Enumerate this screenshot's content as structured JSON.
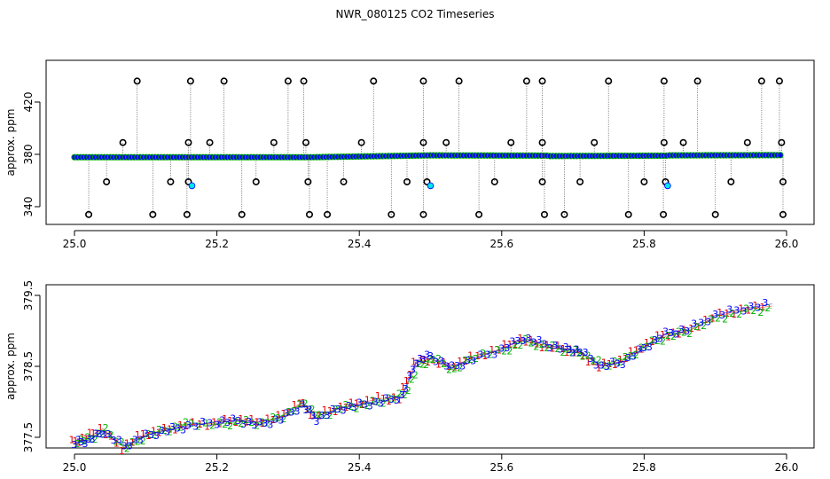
{
  "title": "NWR_080125  CO2 Timeseries",
  "colors": {
    "line": "#000000",
    "outline": "#000000",
    "fill_point": "#0000ff",
    "fill_ring": "#00b000",
    "highlight": "#00e5ee",
    "digit1": "#e00000",
    "digit2": "#00b000",
    "digit3": "#0000ff",
    "segment_red": "#e00000"
  },
  "chart_data": [
    {
      "type": "scatter",
      "title": "",
      "xlabel": "",
      "ylabel": "approx. ppm",
      "xlim": [
        25.0,
        26.0
      ],
      "ylim": [
        330,
        443
      ],
      "xticks": [
        "25.0",
        "25.2",
        "25.4",
        "25.6",
        "25.8",
        "26.0"
      ],
      "yticks": [
        "340",
        "380",
        "420"
      ],
      "grid": false,
      "series": [
        {
          "role": "baseline",
          "values": [
            [
              25.0,
              377.8
            ],
            [
              25.333,
              377.8
            ],
            [
              25.334,
              377.8
            ],
            [
              25.5,
              379.2
            ],
            [
              25.666,
              379.0
            ],
            [
              25.667,
              378.7
            ],
            [
              25.833,
              379.0
            ],
            [
              25.834,
              379.2
            ],
            [
              25.995,
              379.4
            ]
          ]
        },
        {
          "role": "spikes_high",
          "values": [
            [
              25.088,
              436
            ],
            [
              25.163,
              436
            ],
            [
              25.21,
              436
            ],
            [
              25.3,
              436
            ],
            [
              25.322,
              436
            ],
            [
              25.42,
              436
            ],
            [
              25.49,
              436
            ],
            [
              25.54,
              436
            ],
            [
              25.635,
              436
            ],
            [
              25.657,
              436
            ],
            [
              25.75,
              436
            ],
            [
              25.828,
              436
            ],
            [
              25.875,
              436
            ],
            [
              25.965,
              436
            ],
            [
              25.99,
              436
            ]
          ]
        },
        {
          "role": "spikes_low",
          "values": [
            [
              25.02,
              334
            ],
            [
              25.11,
              334
            ],
            [
              25.158,
              334
            ],
            [
              25.235,
              334
            ],
            [
              25.33,
              334
            ],
            [
              25.355,
              334
            ],
            [
              25.445,
              334
            ],
            [
              25.49,
              334
            ],
            [
              25.568,
              334
            ],
            [
              25.66,
              334
            ],
            [
              25.688,
              334
            ],
            [
              25.778,
              334
            ],
            [
              25.827,
              334
            ],
            [
              25.9,
              334
            ],
            [
              25.995,
              334
            ]
          ]
        },
        {
          "role": "spikes_mid_high",
          "values": [
            [
              25.068,
              389
            ],
            [
              25.16,
              389
            ],
            [
              25.19,
              389
            ],
            [
              25.28,
              389
            ],
            [
              25.325,
              389
            ],
            [
              25.403,
              389
            ],
            [
              25.49,
              389
            ],
            [
              25.522,
              389
            ],
            [
              25.613,
              389
            ],
            [
              25.657,
              389
            ],
            [
              25.73,
              389
            ],
            [
              25.828,
              389
            ],
            [
              25.855,
              389
            ],
            [
              25.945,
              389
            ],
            [
              25.993,
              389
            ]
          ]
        },
        {
          "role": "spikes_mid_low",
          "values": [
            [
              25.045,
              359
            ],
            [
              25.135,
              359
            ],
            [
              25.16,
              359
            ],
            [
              25.255,
              359
            ],
            [
              25.328,
              359
            ],
            [
              25.378,
              359
            ],
            [
              25.467,
              359
            ],
            [
              25.495,
              359
            ],
            [
              25.59,
              359
            ],
            [
              25.657,
              359
            ],
            [
              25.71,
              359
            ],
            [
              25.8,
              359
            ],
            [
              25.83,
              359
            ],
            [
              25.922,
              359
            ],
            [
              25.995,
              359
            ]
          ]
        },
        {
          "role": "highlight",
          "values": [
            [
              25.165,
              356
            ],
            [
              25.5,
              356
            ],
            [
              25.833,
              356
            ]
          ]
        }
      ]
    },
    {
      "type": "line",
      "title": "",
      "xlabel": "",
      "ylabel": "approx. ppm",
      "xlim": [
        25.0,
        26.0
      ],
      "ylim": [
        377.3,
        379.55
      ],
      "xticks": [
        "25.0",
        "25.2",
        "25.4",
        "25.6",
        "25.8",
        "26.0"
      ],
      "yticks": [
        "377.5",
        "378.5",
        "379.5"
      ],
      "grid": false,
      "series": [
        {
          "name": "1",
          "values": [
            [
              25.0,
              377.43
            ],
            [
              25.02,
              377.5
            ],
            [
              25.04,
              377.62
            ],
            [
              25.07,
              377.35
            ],
            [
              25.1,
              377.55
            ],
            [
              25.13,
              377.6
            ],
            [
              25.16,
              377.68
            ],
            [
              25.2,
              377.7
            ],
            [
              25.23,
              377.75
            ],
            [
              25.26,
              377.72
            ],
            [
              25.29,
              377.78
            ],
            [
              25.32,
              378.0
            ],
            [
              25.34,
              377.8
            ],
            [
              25.37,
              377.9
            ],
            [
              25.4,
              377.98
            ],
            [
              25.43,
              378.05
            ],
            [
              25.46,
              378.05
            ],
            [
              25.48,
              378.55
            ],
            [
              25.5,
              378.6
            ],
            [
              25.53,
              378.5
            ],
            [
              25.56,
              378.62
            ],
            [
              25.6,
              378.75
            ],
            [
              25.63,
              378.88
            ],
            [
              25.66,
              378.8
            ],
            [
              25.69,
              378.75
            ],
            [
              25.71,
              378.7
            ],
            [
              25.74,
              378.5
            ],
            [
              25.77,
              378.58
            ],
            [
              25.8,
              378.78
            ],
            [
              25.83,
              378.95
            ],
            [
              25.86,
              378.98
            ],
            [
              25.9,
              379.2
            ],
            [
              25.94,
              379.3
            ],
            [
              25.98,
              379.35
            ]
          ]
        },
        {
          "name": "2",
          "values": [
            [
              25.0,
              377.45
            ],
            [
              25.02,
              377.48
            ],
            [
              25.04,
              377.6
            ],
            [
              25.07,
              377.36
            ],
            [
              25.1,
              377.53
            ],
            [
              25.13,
              377.62
            ],
            [
              25.16,
              377.7
            ],
            [
              25.2,
              377.68
            ],
            [
              25.23,
              377.72
            ],
            [
              25.26,
              377.7
            ],
            [
              25.29,
              377.8
            ],
            [
              25.32,
              377.98
            ],
            [
              25.34,
              377.78
            ],
            [
              25.37,
              377.92
            ],
            [
              25.4,
              377.95
            ],
            [
              25.43,
              378.02
            ],
            [
              25.46,
              378.1
            ],
            [
              25.48,
              378.5
            ],
            [
              25.5,
              378.62
            ],
            [
              25.53,
              378.45
            ],
            [
              25.56,
              378.65
            ],
            [
              25.6,
              378.72
            ],
            [
              25.63,
              378.85
            ],
            [
              25.66,
              378.78
            ],
            [
              25.69,
              378.72
            ],
            [
              25.71,
              378.68
            ],
            [
              25.74,
              378.52
            ],
            [
              25.77,
              378.6
            ],
            [
              25.8,
              378.8
            ],
            [
              25.83,
              378.92
            ],
            [
              25.86,
              379.0
            ],
            [
              25.9,
              379.18
            ],
            [
              25.94,
              379.28
            ],
            [
              25.98,
              379.32
            ]
          ]
        },
        {
          "name": "3",
          "values": [
            [
              25.0,
              377.42
            ],
            [
              25.02,
              377.46
            ],
            [
              25.04,
              377.58
            ],
            [
              25.07,
              377.38
            ],
            [
              25.1,
              377.52
            ],
            [
              25.13,
              377.6
            ],
            [
              25.16,
              377.66
            ],
            [
              25.2,
              377.72
            ],
            [
              25.23,
              377.74
            ],
            [
              25.26,
              377.68
            ],
            [
              25.29,
              377.76
            ],
            [
              25.32,
              377.95
            ],
            [
              25.34,
              377.76
            ],
            [
              25.37,
              377.9
            ],
            [
              25.4,
              377.96
            ],
            [
              25.43,
              378.0
            ],
            [
              25.46,
              378.08
            ],
            [
              25.48,
              378.58
            ],
            [
              25.5,
              378.65
            ],
            [
              25.53,
              378.48
            ],
            [
              25.56,
              378.6
            ],
            [
              25.6,
              378.74
            ],
            [
              25.63,
              378.9
            ],
            [
              25.66,
              378.82
            ],
            [
              25.69,
              378.74
            ],
            [
              25.71,
              378.72
            ],
            [
              25.74,
              378.5
            ],
            [
              25.77,
              378.56
            ],
            [
              25.8,
              378.76
            ],
            [
              25.83,
              378.96
            ],
            [
              25.86,
              379.02
            ],
            [
              25.9,
              379.22
            ],
            [
              25.94,
              379.32
            ],
            [
              25.98,
              379.38
            ]
          ]
        }
      ]
    }
  ]
}
